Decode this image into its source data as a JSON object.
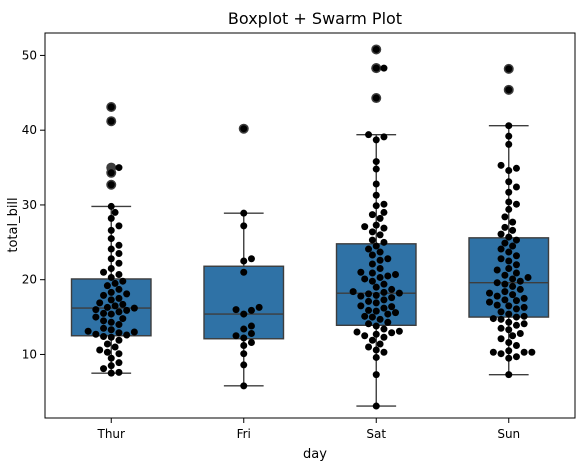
{
  "chart_data": {
    "type": "box",
    "title": "Boxplot + Swarm Plot",
    "xlabel": "day",
    "ylabel": "total_bill",
    "ylim": [
      1.5,
      53
    ],
    "yticks": [
      10,
      20,
      30,
      40,
      50
    ],
    "categories": [
      "Thur",
      "Fri",
      "Sat",
      "Sun"
    ],
    "box_color": "#2f72a6",
    "point_color": "#000000",
    "boxes": [
      {
        "category": "Thur",
        "whisker_low": 7.5,
        "q1": 12.5,
        "median": 16.2,
        "q3": 20.1,
        "whisker_high": 29.8,
        "outliers": [
          32.7,
          34.3,
          35.0,
          41.2,
          43.1
        ]
      },
      {
        "category": "Fri",
        "whisker_low": 5.8,
        "q1": 12.1,
        "median": 15.4,
        "q3": 21.8,
        "whisker_high": 28.9,
        "outliers": [
          40.2
        ]
      },
      {
        "category": "Sat",
        "whisker_low": 3.1,
        "q1": 13.9,
        "median": 18.2,
        "q3": 24.8,
        "whisker_high": 39.4,
        "outliers": [
          44.3,
          48.3,
          48.3,
          50.8
        ]
      },
      {
        "category": "Sun",
        "whisker_low": 7.3,
        "q1": 15.0,
        "median": 19.6,
        "q3": 25.6,
        "whisker_high": 40.6,
        "outliers": [
          45.4,
          48.2
        ]
      }
    ],
    "swarm": [
      {
        "category": "Thur",
        "values": [
          7.5,
          7.6,
          8.1,
          8.5,
          8.9,
          9.5,
          10.1,
          10.3,
          10.6,
          11.0,
          11.4,
          11.9,
          12.3,
          12.4,
          12.6,
          12.7,
          12.9,
          13.0,
          13.1,
          13.3,
          13.5,
          14.0,
          14.3,
          14.5,
          14.8,
          15.0,
          15.4,
          15.5,
          15.7,
          15.9,
          16.0,
          16.2,
          16.3,
          16.5,
          16.7,
          16.9,
          17.3,
          17.5,
          17.9,
          18.1,
          18.3,
          18.7,
          19.2,
          19.5,
          19.8,
          20.3,
          20.7,
          21.0,
          21.5,
          22.2,
          22.8,
          23.5,
          24.1,
          24.6,
          25.5,
          26.6,
          27.2,
          28.2,
          29.0,
          29.8,
          32.7,
          34.3,
          35.0,
          41.2,
          43.1
        ]
      },
      {
        "category": "Fri",
        "values": [
          5.8,
          8.6,
          10.1,
          11.2,
          11.6,
          12.2,
          12.5,
          12.8,
          13.4,
          13.8,
          15.4,
          15.9,
          16.0,
          16.3,
          21.0,
          22.5,
          22.8,
          27.2,
          28.9,
          40.2
        ]
      },
      {
        "category": "Sat",
        "values": [
          3.1,
          7.3,
          9.6,
          10.3,
          10.6,
          11.0,
          11.4,
          11.9,
          12.3,
          12.5,
          12.7,
          12.9,
          13.0,
          13.1,
          13.4,
          13.8,
          14.1,
          14.3,
          14.7,
          15.0,
          15.1,
          15.4,
          15.6,
          15.8,
          15.9,
          16.2,
          16.4,
          16.5,
          16.9,
          17.1,
          17.3,
          17.6,
          17.8,
          17.9,
          18.1,
          18.2,
          18.3,
          18.4,
          18.7,
          19.0,
          19.4,
          19.8,
          20.1,
          20.3,
          20.5,
          20.7,
          20.9,
          21.0,
          21.5,
          22.1,
          22.6,
          22.8,
          23.3,
          23.7,
          24.1,
          24.5,
          25.0,
          25.3,
          26.0,
          26.4,
          26.9,
          27.1,
          27.3,
          28.2,
          28.7,
          29.0,
          29.9,
          30.1,
          31.3,
          32.8,
          34.8,
          35.8,
          38.7,
          39.1,
          39.4,
          44.3,
          48.3,
          48.3,
          50.8
        ]
      },
      {
        "category": "Sun",
        "values": [
          7.3,
          9.5,
          9.7,
          10.1,
          10.3,
          10.3,
          10.3,
          10.5,
          11.2,
          11.6,
          12.1,
          12.5,
          12.8,
          13.3,
          13.5,
          13.9,
          14.1,
          14.3,
          14.7,
          14.8,
          15.0,
          15.1,
          15.4,
          15.7,
          16.1,
          16.3,
          16.5,
          16.6,
          17.0,
          17.2,
          17.3,
          17.5,
          17.8,
          18.0,
          18.2,
          18.4,
          18.7,
          19.1,
          19.4,
          19.6,
          19.8,
          20.1,
          20.3,
          20.6,
          20.9,
          21.3,
          21.5,
          22.0,
          22.5,
          22.8,
          23.2,
          23.7,
          24.1,
          24.5,
          24.9,
          25.3,
          25.7,
          26.1,
          26.6,
          27.0,
          27.7,
          28.4,
          29.4,
          30.1,
          30.4,
          31.7,
          32.4,
          33.1,
          34.6,
          34.9,
          35.3,
          38.1,
          39.2,
          40.6,
          45.4,
          48.2
        ]
      }
    ]
  }
}
